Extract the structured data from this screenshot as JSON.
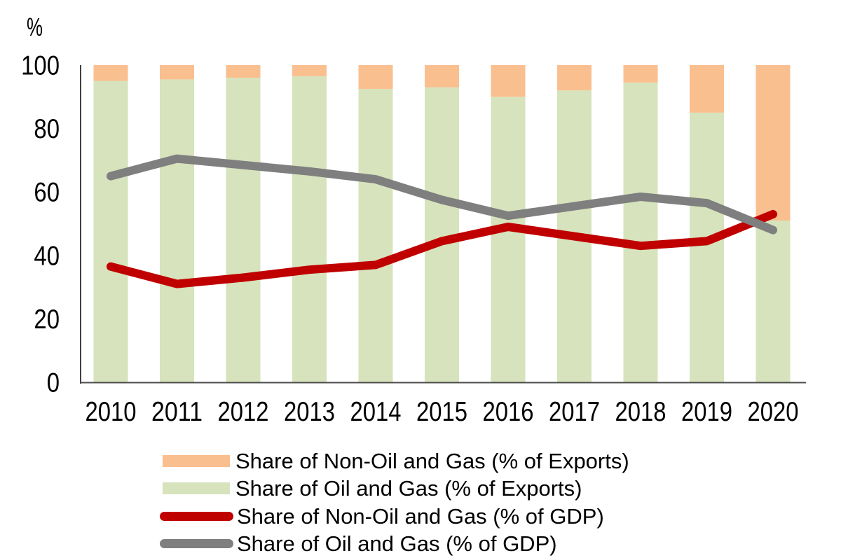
{
  "chart_data": {
    "type": "combo: 100% stacked bar + line",
    "title": "",
    "ylabel": "%",
    "x": [
      "2010",
      "2011",
      "2012",
      "2013",
      "2014",
      "2015",
      "2016",
      "2017",
      "2018",
      "2019",
      "2020"
    ],
    "ylim": [
      0,
      100
    ],
    "yticks": [
      0,
      20,
      40,
      60,
      80,
      100
    ],
    "grid": false,
    "legend_position": "bottom-left",
    "series": [
      {
        "name": "Share of Oil and Gas (% of Exports)",
        "type": "bar-stacked",
        "color": "#d6e3bc",
        "values": [
          95,
          95.5,
          96,
          96.5,
          92.5,
          93,
          90,
          92,
          94.5,
          85,
          51
        ]
      },
      {
        "name": "Share of Non-Oil and Gas (% of Exports)",
        "type": "bar-stacked",
        "color": "#fabf8f",
        "values": [
          5,
          4.5,
          4,
          3.5,
          7.5,
          7,
          10,
          8,
          5.5,
          15,
          49
        ]
      },
      {
        "name": "Share of Non-Oil and Gas (% of GDP)",
        "type": "line",
        "color": "#c00000",
        "values": [
          36.5,
          31,
          33,
          35.5,
          37,
          44.5,
          49,
          46,
          43,
          44.5,
          53
        ]
      },
      {
        "name": "Share of Oil and Gas (% of GDP)",
        "type": "line",
        "color": "#7f7f7f",
        "values": [
          65,
          70.5,
          68.5,
          66.5,
          64,
          57.5,
          52.5,
          55.5,
          58.5,
          56.5,
          48
        ]
      }
    ],
    "legend": [
      {
        "label": "Share of Non-Oil and Gas (% of Exports)",
        "swatch": "rect",
        "color": "#fabf8f"
      },
      {
        "label": "Share of Oil and Gas (% of Exports)",
        "swatch": "rect",
        "color": "#d6e3bc"
      },
      {
        "label": "Share of Non-Oil and Gas (% of GDP)",
        "swatch": "line",
        "color": "#c00000"
      },
      {
        "label": "Share of Oil and Gas (% of GDP)",
        "swatch": "line",
        "color": "#7f7f7f"
      }
    ]
  }
}
